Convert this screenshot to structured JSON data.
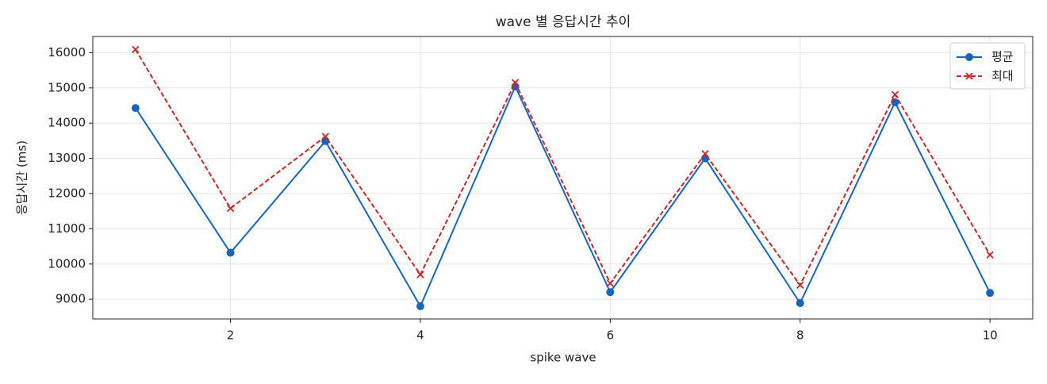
{
  "chart_data": {
    "type": "line",
    "title": "wave 별 응답시간 추이",
    "x_label": "spike wave",
    "y_label": "응답시간 (ms)",
    "x": [
      1,
      2,
      3,
      4,
      5,
      6,
      7,
      8,
      9,
      10
    ],
    "series": [
      {
        "name": "평균",
        "color": "#1565c0",
        "marker": "circle",
        "dash": false,
        "values": [
          14430,
          10320,
          13490,
          8800,
          15040,
          9200,
          13000,
          8890,
          14590,
          9180
        ]
      },
      {
        "name": "최대",
        "color": "#c62828",
        "marker": "x",
        "dash": true,
        "values": [
          16090,
          11580,
          13620,
          9700,
          15150,
          9450,
          13130,
          9400,
          14810,
          10260
        ]
      }
    ],
    "xlim": [
      0.55,
      10.45
    ],
    "xticks": [
      2,
      4,
      6,
      8,
      10
    ],
    "ylim": [
      8440,
      16460
    ],
    "yticks": [
      9000,
      10000,
      11000,
      12000,
      13000,
      14000,
      15000,
      16000
    ],
    "grid": true,
    "legend": "upper right"
  }
}
